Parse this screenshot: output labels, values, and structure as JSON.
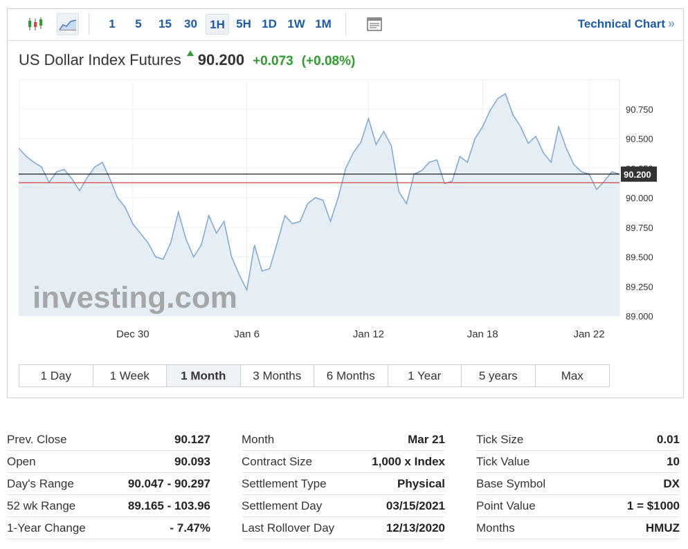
{
  "toolbar": {
    "timeframes": [
      "1",
      "5",
      "15",
      "30",
      "1H",
      "5H",
      "1D",
      "1W",
      "1M"
    ],
    "selected_timeframe": "1H",
    "technical_chart_label": "Technical Chart",
    "technical_chart_arrow": "»"
  },
  "header": {
    "instrument": "US Dollar Index Futures",
    "last": "90.200",
    "change": "+0.073",
    "change_pct": "(+0.08%)",
    "up_color": "#2e9c2e"
  },
  "colors": {
    "line": "#7aa6d2",
    "fill": "#e5eef5",
    "current_line": "#000000",
    "prev_close_line": "#d94141",
    "price_label_bg": "#333333",
    "accent": "#1a5aa6"
  },
  "chart_data": {
    "type": "area",
    "title": "",
    "xlabel": "",
    "ylabel": "",
    "ylim": [
      89.0,
      91.0
    ],
    "y_ticks": [
      "90.750",
      "90.500",
      "90.250",
      "90.000",
      "89.750",
      "89.500",
      "89.250",
      "89.000"
    ],
    "y_tick_values": [
      90.75,
      90.5,
      90.25,
      90.0,
      89.75,
      89.5,
      89.25,
      89.0
    ],
    "x_ticks": [
      "Dec 30",
      "Jan 6",
      "Jan 12",
      "Jan 18",
      "Jan 22"
    ],
    "x_tick_positions": [
      15,
      30,
      46,
      61,
      75
    ],
    "current_value": 90.2,
    "current_label": "90.200",
    "prev_close": 90.127,
    "watermark": "investing.com",
    "grid": true,
    "series": [
      {
        "x": [
          0,
          1,
          2,
          3,
          4,
          5,
          6,
          7,
          8,
          9,
          10,
          11,
          12,
          13,
          14,
          15,
          16,
          17,
          18,
          19,
          20,
          21,
          22,
          23,
          24,
          25,
          26,
          27,
          28,
          29,
          30,
          31,
          32,
          33,
          34,
          35,
          36,
          37,
          38,
          39,
          40,
          41,
          42,
          43,
          44,
          45,
          46,
          47,
          48,
          49,
          50,
          51,
          52,
          53,
          54,
          55,
          56,
          57,
          58,
          59,
          60,
          61,
          62,
          63,
          64,
          65,
          66,
          67,
          68,
          69,
          70,
          71,
          72,
          73,
          74,
          75,
          76,
          77,
          78,
          79
        ],
        "values": [
          90.42,
          90.35,
          90.3,
          90.26,
          90.13,
          90.22,
          90.24,
          90.16,
          90.06,
          90.17,
          90.26,
          90.3,
          90.16,
          90.0,
          89.92,
          89.78,
          89.7,
          89.62,
          89.5,
          89.48,
          89.62,
          89.88,
          89.65,
          89.5,
          89.6,
          89.85,
          89.7,
          89.8,
          89.5,
          89.35,
          89.22,
          89.6,
          89.38,
          89.4,
          89.62,
          89.85,
          89.78,
          89.8,
          89.95,
          90.0,
          89.98,
          89.8,
          90.0,
          90.25,
          90.38,
          90.47,
          90.67,
          90.45,
          90.56,
          90.44,
          90.05,
          89.95,
          90.2,
          90.23,
          90.3,
          90.32,
          90.12,
          90.14,
          90.35,
          90.3,
          90.5,
          90.6,
          90.74,
          90.84,
          90.88,
          90.7,
          90.6,
          90.46,
          90.52,
          90.38,
          90.3,
          90.6,
          90.42,
          90.28,
          90.22,
          90.2,
          90.07,
          90.14,
          90.22,
          90.2
        ]
      }
    ]
  },
  "range_tabs": [
    "1 Day",
    "1 Week",
    "1 Month",
    "3 Months",
    "6 Months",
    "1 Year",
    "5 years",
    "Max"
  ],
  "selected_range": "1 Month",
  "stats": {
    "col1": [
      {
        "label": "Prev. Close",
        "value": "90.127"
      },
      {
        "label": "Open",
        "value": "90.093"
      },
      {
        "label": "Day's Range",
        "value": "90.047 - 90.297"
      },
      {
        "label": "52 wk Range",
        "value": "89.165 - 103.96"
      },
      {
        "label": "1-Year Change",
        "value": "- 7.47%"
      }
    ],
    "col2": [
      {
        "label": "Month",
        "value": "Mar 21"
      },
      {
        "label": "Contract Size",
        "value": "1,000 x Index"
      },
      {
        "label": "Settlement Type",
        "value": "Physical"
      },
      {
        "label": "Settlement Day",
        "value": "03/15/2021"
      },
      {
        "label": "Last Rollover Day",
        "value": "12/13/2020"
      }
    ],
    "col3": [
      {
        "label": "Tick Size",
        "value": "0.01"
      },
      {
        "label": "Tick Value",
        "value": "10"
      },
      {
        "label": "Base Symbol",
        "value": "DX"
      },
      {
        "label": "Point Value",
        "value": "1 = $1000"
      },
      {
        "label": "Months",
        "value": "HMUZ"
      }
    ]
  }
}
